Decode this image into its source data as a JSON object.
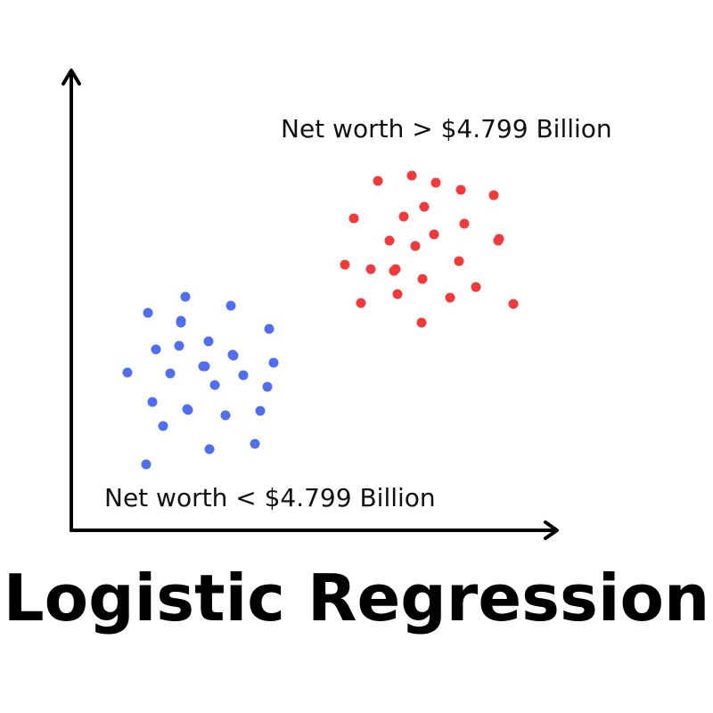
{
  "title": "Logistic Regression",
  "colors": {
    "axis": "#000000",
    "class_high": "#f23a3a",
    "class_low": "#4f6ef0"
  },
  "classes": {
    "high": {
      "label": "Net worth > $4.799 Billion",
      "point_count": 26
    },
    "low": {
      "label": "Net worth < $4.799 Billion",
      "point_count": 28
    }
  }
}
